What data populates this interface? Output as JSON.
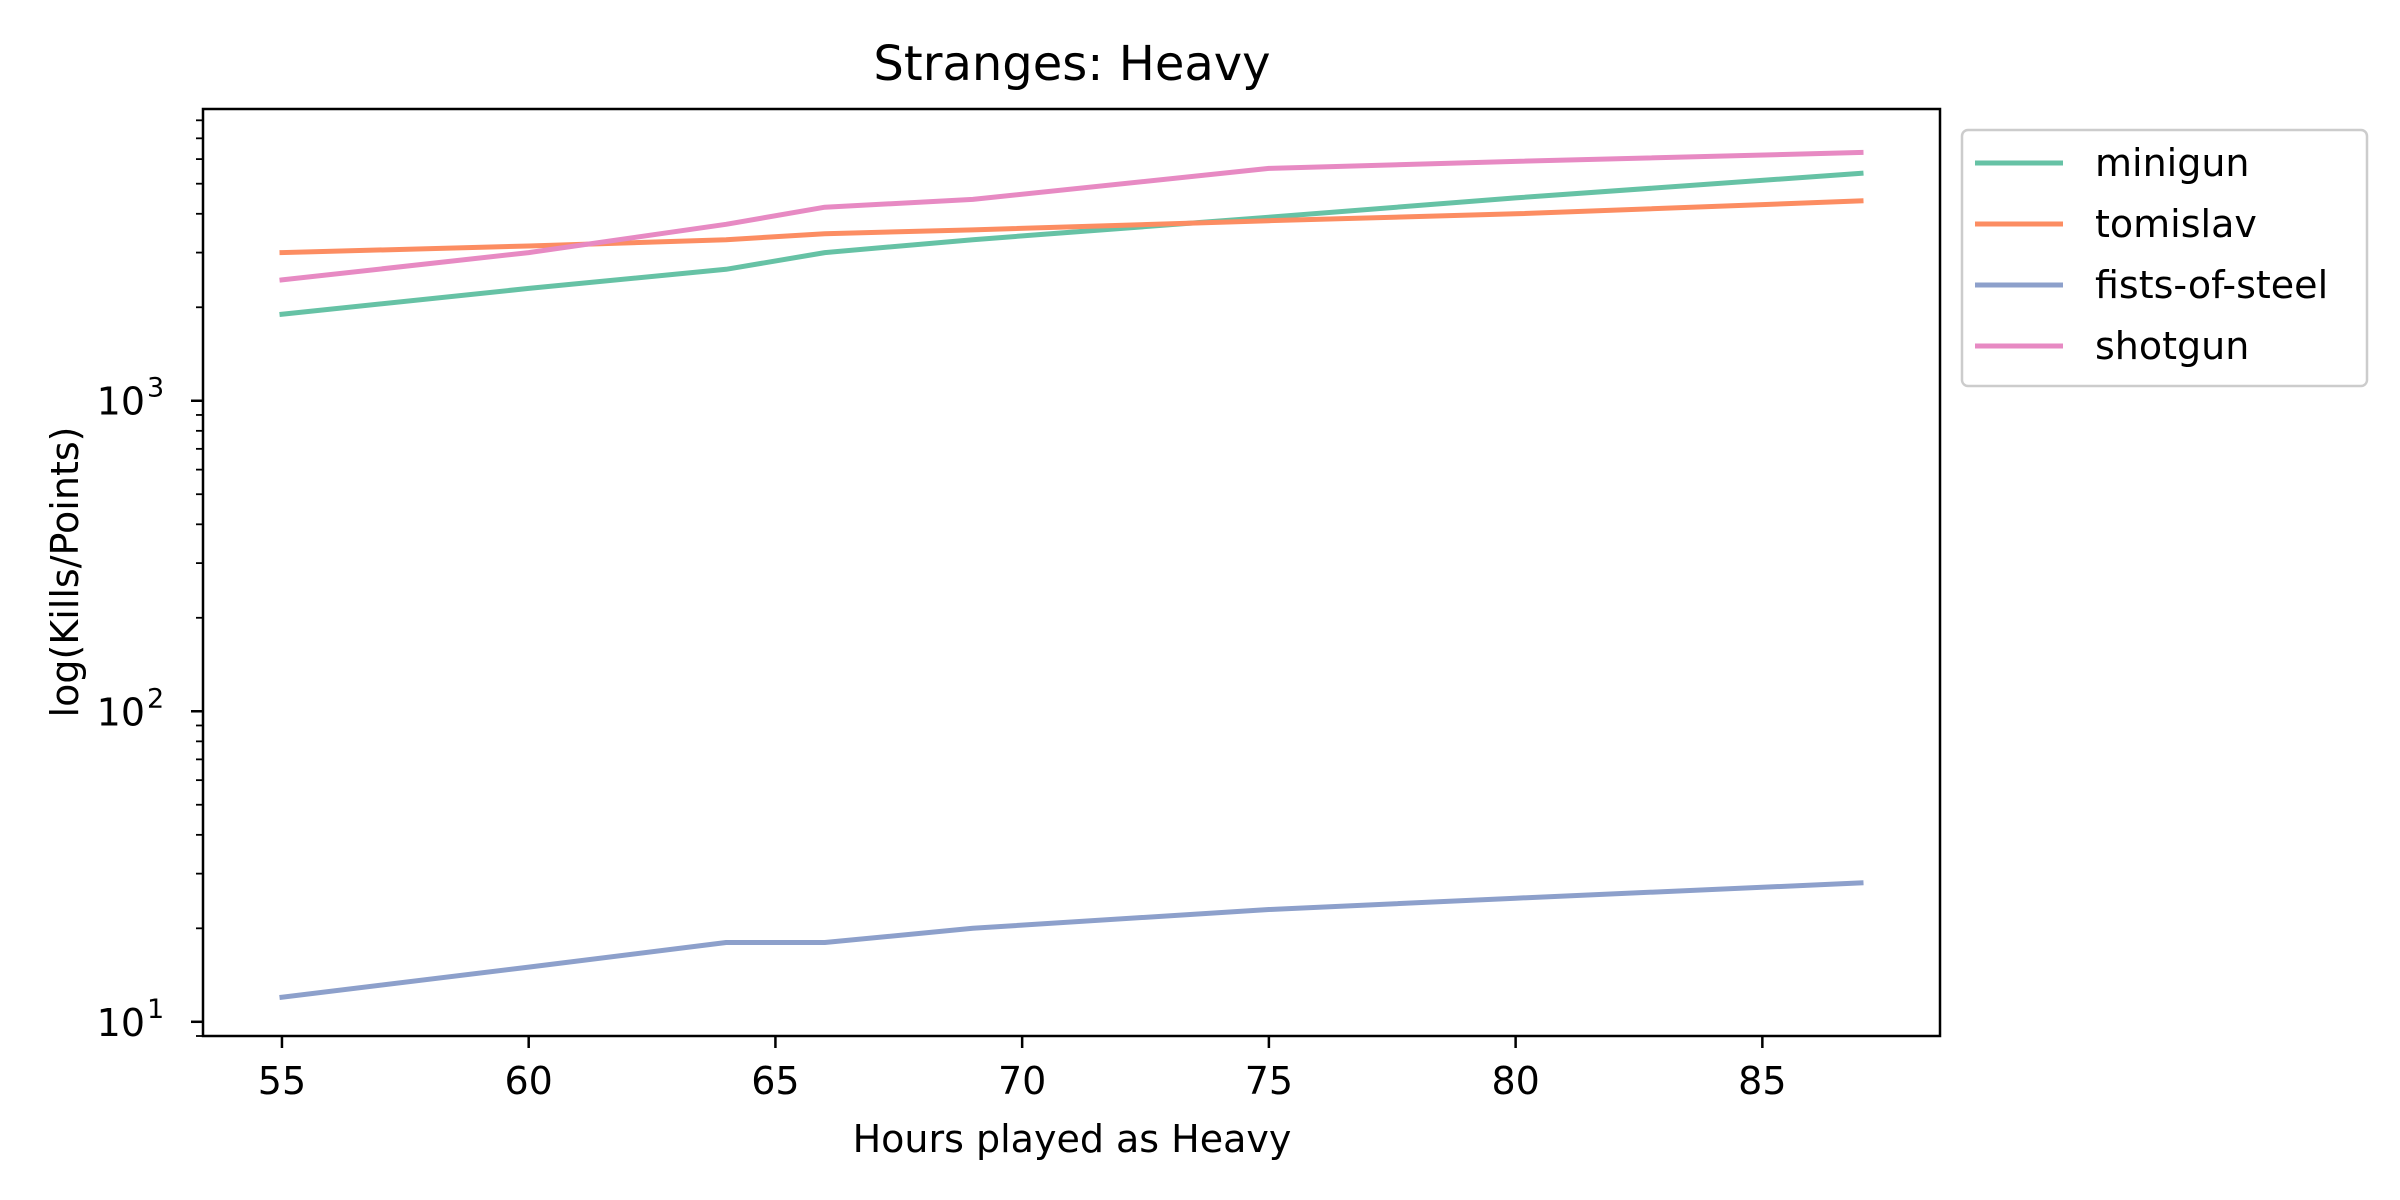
{
  "chart_data": {
    "type": "line",
    "title": "Stranges: Heavy",
    "xlabel": "Hours played as Heavy",
    "ylabel": "log(Kills/Points)",
    "yscale": "log",
    "xlim": [
      53.4,
      88.6
    ],
    "ylim": [
      9,
      8700
    ],
    "xticks": [
      55,
      60,
      65,
      70,
      75,
      80,
      85
    ],
    "yticks": [
      {
        "base": "10",
        "exp": "1",
        "value": 10
      },
      {
        "base": "10",
        "exp": "2",
        "value": 100
      },
      {
        "base": "10",
        "exp": "3",
        "value": 1000
      }
    ],
    "grid": false,
    "legend_position": "outside-upper-right",
    "series": [
      {
        "name": "minigun",
        "color": "#66c2a5",
        "x": [
          55,
          60,
          64,
          66,
          69,
          75,
          80,
          87
        ],
        "y": [
          1900,
          2300,
          2650,
          3000,
          3300,
          3900,
          4500,
          5400
        ]
      },
      {
        "name": "tomislav",
        "color": "#fc8d62",
        "x": [
          55,
          60,
          64,
          66,
          69,
          75,
          80,
          87
        ],
        "y": [
          3000,
          3150,
          3300,
          3450,
          3550,
          3800,
          4000,
          4400
        ]
      },
      {
        "name": "fists-of-steel",
        "color": "#8da0cb",
        "x": [
          55,
          60,
          64,
          66,
          69,
          75,
          80,
          87
        ],
        "y": [
          12,
          15,
          18,
          18,
          20,
          23,
          25,
          28
        ]
      },
      {
        "name": "shotgun",
        "color": "#e78ac3",
        "x": [
          55,
          60,
          64,
          66,
          69,
          75,
          80,
          87
        ],
        "y": [
          2450,
          3000,
          3700,
          4200,
          4450,
          5600,
          5900,
          6300
        ]
      }
    ]
  }
}
